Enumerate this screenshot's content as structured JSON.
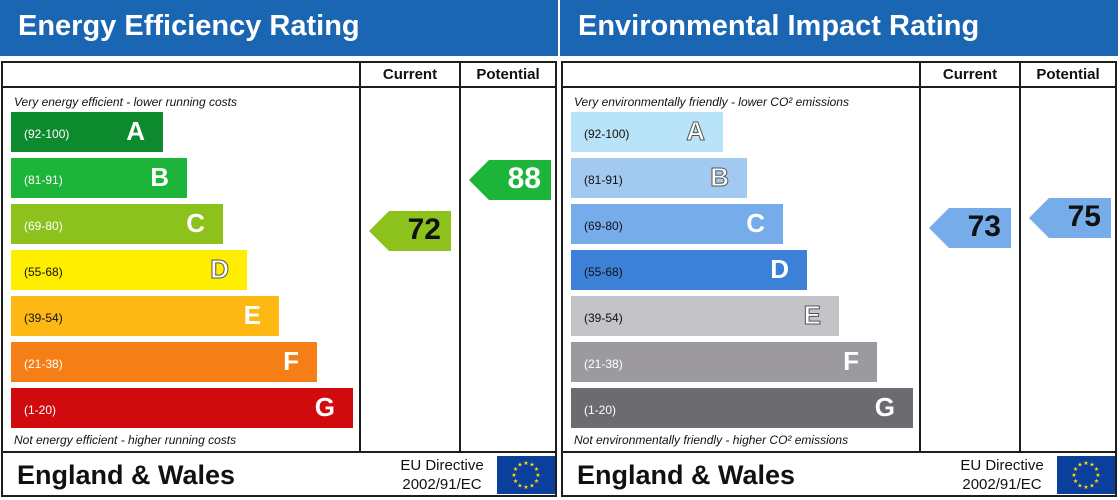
{
  "chart_data": [
    {
      "type": "bar",
      "title": "Energy Efficiency Rating",
      "columns": [
        "Current",
        "Potential"
      ],
      "top_caption": "Very energy efficient - lower running costs",
      "bottom_caption": "Not energy efficient - higher running costs",
      "bands": [
        {
          "letter": "A",
          "range": "(92-100)",
          "color": "#0e8a2e"
        },
        {
          "letter": "B",
          "range": "(81-91)",
          "color": "#1db43a"
        },
        {
          "letter": "C",
          "range": "(69-80)",
          "color": "#8cc21b"
        },
        {
          "letter": "D",
          "range": "(55-68)",
          "color": "#ffee00"
        },
        {
          "letter": "E",
          "range": "(39-54)",
          "color": "#fdb813"
        },
        {
          "letter": "F",
          "range": "(21-38)",
          "color": "#f57e17"
        },
        {
          "letter": "G",
          "range": "(1-20)",
          "color": "#d00b10"
        }
      ],
      "current": {
        "value": 72,
        "band": "C",
        "color": "#8cc21b",
        "text_color": "#111111"
      },
      "potential": {
        "value": 88,
        "band": "B",
        "color": "#1db43a",
        "text_color": "#ffffff"
      },
      "footer": {
        "region": "England & Wales",
        "directive_line1": "EU Directive",
        "directive_line2": "2002/91/EC"
      }
    },
    {
      "type": "bar",
      "title": "Environmental Impact Rating",
      "columns": [
        "Current",
        "Potential"
      ],
      "top_caption": "Very environmentally friendly - lower CO² emissions",
      "bottom_caption": "Not environmentally friendly - higher CO² emissions",
      "bands": [
        {
          "letter": "A",
          "range": "(92-100)",
          "color": "#b9e3f8"
        },
        {
          "letter": "B",
          "range": "(81-91)",
          "color": "#a2c9ef"
        },
        {
          "letter": "C",
          "range": "(69-80)",
          "color": "#76acea"
        },
        {
          "letter": "D",
          "range": "(55-68)",
          "color": "#3d80d8"
        },
        {
          "letter": "E",
          "range": "(39-54)",
          "color": "#c4c3c8"
        },
        {
          "letter": "F",
          "range": "(21-38)",
          "color": "#9d9a9f"
        },
        {
          "letter": "G",
          "range": "(1-20)",
          "color": "#6c6b70"
        }
      ],
      "current": {
        "value": 73,
        "band": "C",
        "color": "#76acea",
        "text_color": "#111111"
      },
      "potential": {
        "value": 75,
        "band": "C",
        "color": "#76acea",
        "text_color": "#111111"
      },
      "footer": {
        "region": "England & Wales",
        "directive_line1": "EU Directive",
        "directive_line2": "2002/91/EC"
      }
    }
  ]
}
